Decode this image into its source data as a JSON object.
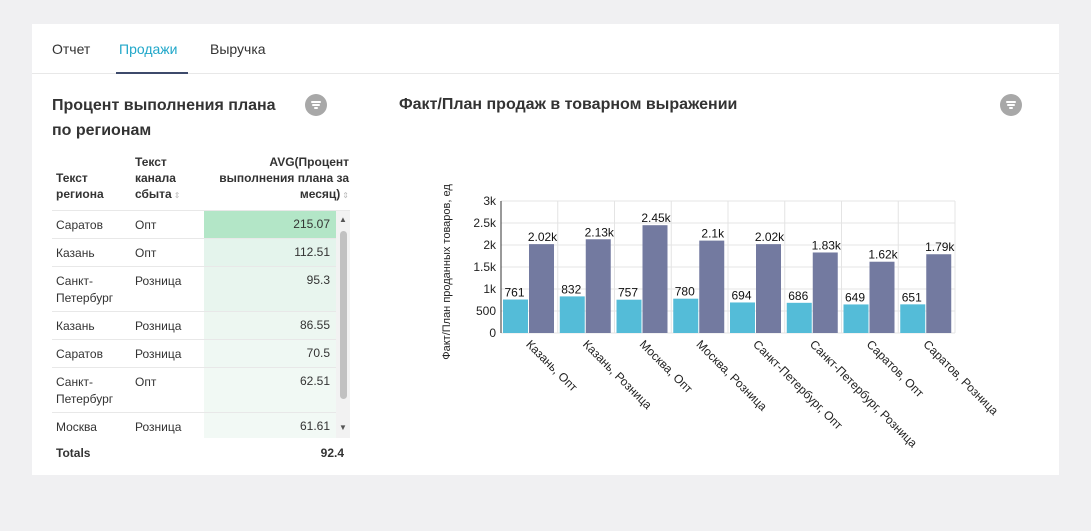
{
  "tabs": [
    {
      "label": "Отчет",
      "active": false
    },
    {
      "label": "Продажи",
      "active": true
    },
    {
      "label": "Выручка",
      "active": false
    }
  ],
  "left_panel": {
    "title": "Процент выполнения плана по регионам",
    "filter_icon": "filter-icon",
    "columns": [
      "Текст региона",
      "Текст канала сбыта",
      "AVG(Процент выполнения плана за месяц)"
    ],
    "rows": [
      {
        "region": "Саратов",
        "channel": "Опт",
        "value": "215.07"
      },
      {
        "region": "Казань",
        "channel": "Опт",
        "value": "112.51"
      },
      {
        "region": "Санкт-Петербург",
        "channel": "Розница",
        "value": "95.3"
      },
      {
        "region": "Казань",
        "channel": "Розница",
        "value": "86.55"
      },
      {
        "region": "Саратов",
        "channel": "Розница",
        "value": "70.5"
      },
      {
        "region": "Санкт-Петербург",
        "channel": "Опт",
        "value": "62.51"
      },
      {
        "region": "Москва",
        "channel": "Розница",
        "value": "61.61"
      }
    ],
    "totals_label": "Totals",
    "totals_value": "92.4",
    "highlight_colors": [
      "#b3e6c7",
      "#e4f4ec",
      "#e8f5ee",
      "#edf7f1",
      "#eff8f3",
      "#f1f9f4",
      "#f2f9f5"
    ]
  },
  "right_panel": {
    "title": "Факт/План продаж в товарном выражении",
    "filter_icon": "filter-icon"
  },
  "chart_data": {
    "type": "bar",
    "ylabel": "Факт/План проданных товаров, ед",
    "ylim": [
      0,
      3000
    ],
    "yticks": [
      "0",
      "500",
      "1k",
      "1.5k",
      "2k",
      "2.5k",
      "3k"
    ],
    "categories": [
      "Казань, Опт",
      "Казань, Розница",
      "Москва, Опт",
      "Москва, Розница",
      "Санкт-Петербург, Опт",
      "Санкт-Петербург, Розница",
      "Саратов, Опт",
      "Саратов, Розница"
    ],
    "series": [
      {
        "values": [
          761,
          832,
          757,
          780,
          694,
          686,
          649,
          651
        ],
        "labels": [
          "761",
          "832",
          "757",
          "780",
          "694",
          "686",
          "649",
          "651"
        ],
        "color": "#54bcd8"
      },
      {
        "values": [
          2020,
          2130,
          2450,
          2100,
          2020,
          1830,
          1620,
          1790
        ],
        "labels": [
          "2.02k",
          "2.13k",
          "2.45k",
          "2.1k",
          "2.02k",
          "1.83k",
          "1.62k",
          "1.79k"
        ],
        "color": "#737aa0"
      }
    ],
    "grid": true
  }
}
